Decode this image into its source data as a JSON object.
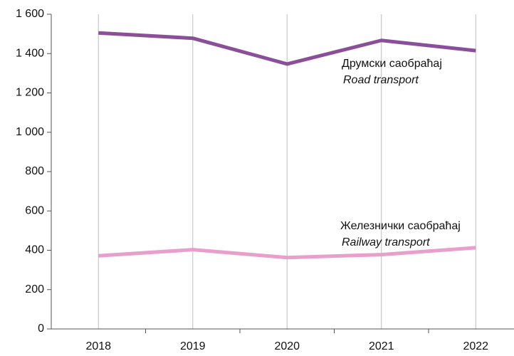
{
  "chart_data": {
    "type": "line",
    "categories": [
      "2018",
      "2019",
      "2020",
      "2021",
      "2022"
    ],
    "series": [
      {
        "name": "Друмски саобраћај",
        "color": "#8b4f9a",
        "values": [
          1505,
          1478,
          1347,
          1467,
          1415
        ]
      },
      {
        "name": "Железнички саобраћај",
        "color": "#e89fcc",
        "values": [
          372,
          403,
          363,
          378,
          413
        ]
      }
    ],
    "annotations": [
      "Road transport",
      "Railway transport"
    ],
    "ylim": [
      0,
      1600
    ],
    "yticks": [
      0,
      200,
      400,
      600,
      800,
      {
        "value": 1000,
        "label": "1 000"
      },
      {
        "value": 1200,
        "label": "1 200"
      },
      {
        "value": 1400,
        "label": "1 400"
      },
      {
        "value": 1600,
        "label": "1 600"
      }
    ],
    "grid": "x"
  }
}
